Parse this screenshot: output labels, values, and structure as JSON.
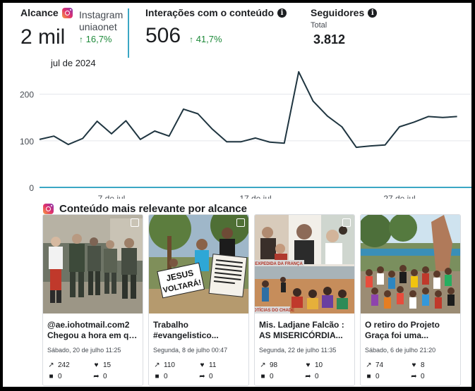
{
  "kpis": {
    "reach": {
      "title": "Alcance",
      "value": "2 mil",
      "source_name": "Instagram",
      "source_account": "uniaonet",
      "change": "16,7%",
      "period": "jul de 2024"
    },
    "interactions": {
      "title": "Interações com o conteúdo",
      "value": "506",
      "change": "41,7%"
    },
    "followers": {
      "title": "Seguidores",
      "subtitle": "Total",
      "value": "3.812"
    }
  },
  "colors": {
    "line": "#1f3540",
    "accent": "#3ba7c4",
    "positive": "#1e8a3a"
  },
  "chart_data": {
    "type": "line",
    "y_ticks": [
      0,
      100,
      200
    ],
    "ylim": [
      0,
      260
    ],
    "x_tick_labels": [
      {
        "day": 7,
        "label": "7 de jul"
      },
      {
        "day": 17,
        "label": "17 de jul"
      },
      {
        "day": 27,
        "label": "27 de jul"
      }
    ],
    "x_range": [
      2,
      32
    ],
    "x": [
      2,
      3,
      4,
      5,
      6,
      7,
      8,
      9,
      10,
      11,
      12,
      13,
      14,
      15,
      16,
      17,
      18,
      19,
      20,
      21,
      22,
      23,
      24,
      25,
      26,
      27,
      28,
      29,
      30,
      31
    ],
    "values": [
      103,
      110,
      92,
      105,
      142,
      115,
      143,
      103,
      121,
      110,
      168,
      158,
      125,
      98,
      98,
      106,
      97,
      95,
      248,
      185,
      153,
      130,
      86,
      89,
      91,
      130,
      140,
      152,
      150,
      152
    ],
    "grid": true,
    "legend": "none"
  },
  "content": {
    "title": "Conteúdo mais relevante por alcance",
    "cards": [
      {
        "title_l1": "@ae.iohotmail.com2",
        "title_l2": "Chegou a hora em qu...",
        "date": "Sábado, 20 de julho 11:25",
        "reach": "242",
        "likes": "15",
        "comments": "0",
        "shares": "0"
      },
      {
        "title_l1": "Trabalho",
        "title_l2": "#evangelistico...",
        "date": "Segunda, 8 de julho 00:47",
        "reach": "110",
        "likes": "11",
        "comments": "0",
        "shares": "0",
        "sign_l1": "JESUS",
        "sign_l2": "VOLTARÁ!"
      },
      {
        "title_l1": "Mis. Ladjane Falcão :",
        "title_l2": "AS MISERICÓRDIA...",
        "date": "Segunda, 22 de julho 11:35",
        "reach": "98",
        "likes": "10",
        "comments": "0",
        "shares": "0",
        "caption_top": "EXPEDIDA DA FRANÇA",
        "caption_bottom": "NOTÍCIAS DO CHADE"
      },
      {
        "title_l1": "O retiro do Projeto",
        "title_l2": "Graça foi uma...",
        "date": "Sábado, 6 de julho 21:20",
        "reach": "74",
        "likes": "8",
        "comments": "0",
        "shares": "0"
      }
    ]
  }
}
